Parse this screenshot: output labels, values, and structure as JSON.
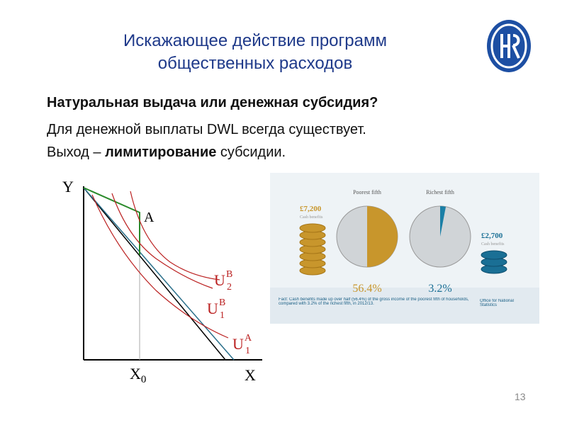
{
  "header": {
    "title_lines": [
      "Искажающее действие программ",
      "общественных расходов"
    ]
  },
  "body": {
    "subtitle": "Натуральная выдача или денежная субсидия?",
    "line1": "Для денежной выплаты DWL всегда существует.",
    "line2": {
      "start": "Выход – ",
      "bold": "лимитирование",
      "end": " субсидии."
    }
  },
  "diagram": {
    "y_axis": "Y",
    "x_axis": "X",
    "x0": {
      "base": "X",
      "sub": "0"
    },
    "point": "A",
    "curves": [
      {
        "base": "U",
        "sup": "B",
        "sub": "2"
      },
      {
        "base": "U",
        "sup": "B",
        "sub": "1"
      },
      {
        "base": "U",
        "sup": "A",
        "sub": "1"
      }
    ]
  },
  "infographic": {
    "left_heading": "Poorest fifth",
    "right_heading": "Richest fifth",
    "left_amount": "£7,200",
    "left_amount_note": "Cash benefits",
    "right_amount": "£2,700",
    "right_amount_note": "Cash benefits",
    "left_share": "56.4%",
    "right_share": "3.2%",
    "fact": "Fact: Cash benefits made up over half (56.4%) of the gross income of the poorest fifth of households, compared with 3.2% of the richest fifth, in 2012/13.",
    "source": "Office for National Statistics"
  },
  "footer": {
    "page": "13"
  }
}
